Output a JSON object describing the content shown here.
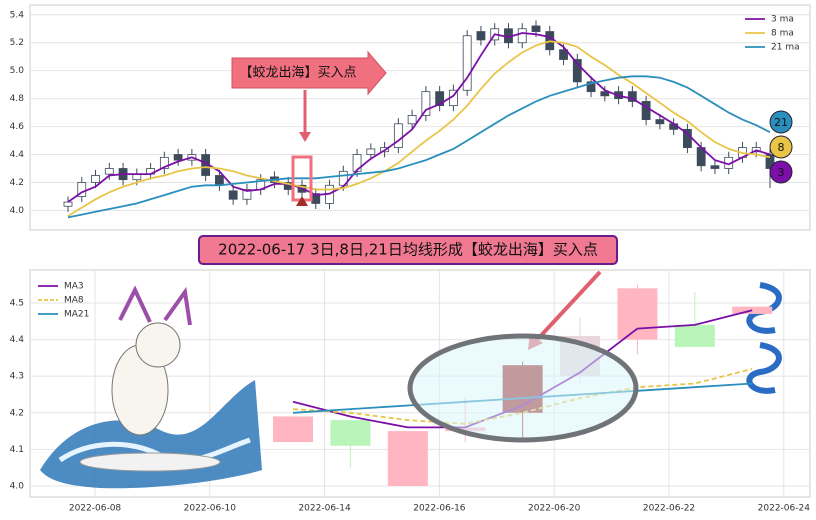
{
  "chart_data": [
    {
      "type": "candlestick",
      "open": [
        4.03,
        4.1,
        4.2,
        4.26,
        4.3,
        4.22,
        4.26,
        4.3,
        4.4,
        4.36,
        4.4,
        4.25,
        4.14,
        4.08,
        4.15,
        4.24,
        4.2,
        4.18,
        4.12,
        4.05,
        4.18,
        4.28,
        4.4,
        4.42,
        4.45,
        4.62,
        4.68,
        4.85,
        4.75,
        4.86,
        5.28,
        5.22,
        5.3,
        5.2,
        5.32,
        5.28,
        5.15,
        5.08,
        4.92,
        4.85,
        4.85,
        4.85,
        4.78,
        4.65,
        4.62,
        4.58,
        4.45,
        4.32,
        4.3,
        4.38,
        4.42,
        4.4
      ],
      "high": [
        4.1,
        4.24,
        4.29,
        4.34,
        4.34,
        4.3,
        4.34,
        4.42,
        4.44,
        4.44,
        4.44,
        4.29,
        4.18,
        4.19,
        4.26,
        4.28,
        4.24,
        4.22,
        4.16,
        4.22,
        4.32,
        4.44,
        4.48,
        4.49,
        4.66,
        4.72,
        4.89,
        4.89,
        4.9,
        5.29,
        5.32,
        5.34,
        5.34,
        5.34,
        5.36,
        5.32,
        5.19,
        5.12,
        4.96,
        4.89,
        4.89,
        4.89,
        4.82,
        4.69,
        4.66,
        4.62,
        4.49,
        4.36,
        4.42,
        4.49,
        4.49,
        4.44
      ],
      "low": [
        3.99,
        4.06,
        4.16,
        4.22,
        4.18,
        4.18,
        4.22,
        4.26,
        4.32,
        4.32,
        4.21,
        4.14,
        4.04,
        4.04,
        4.11,
        4.16,
        4.11,
        4.09,
        4.01,
        4.01,
        4.14,
        4.24,
        4.36,
        4.38,
        4.41,
        4.58,
        4.64,
        4.71,
        4.71,
        4.82,
        5.18,
        5.18,
        5.16,
        5.16,
        5.24,
        5.11,
        5.04,
        4.88,
        4.81,
        4.78,
        4.76,
        4.74,
        4.61,
        4.58,
        4.54,
        4.41,
        4.28,
        4.26,
        4.26,
        4.34,
        4.38,
        4.16
      ],
      "close": [
        4.06,
        4.2,
        4.25,
        4.3,
        4.22,
        4.26,
        4.3,
        4.38,
        4.36,
        4.4,
        4.25,
        4.18,
        4.08,
        4.15,
        4.22,
        4.2,
        4.15,
        4.13,
        4.05,
        4.18,
        4.28,
        4.4,
        4.44,
        4.45,
        4.62,
        4.68,
        4.85,
        4.75,
        4.86,
        5.25,
        5.22,
        5.3,
        5.2,
        5.3,
        5.28,
        5.15,
        5.08,
        4.92,
        4.85,
        4.82,
        4.8,
        4.78,
        4.65,
        4.62,
        4.58,
        4.45,
        4.32,
        4.3,
        4.38,
        4.45,
        4.45,
        4.3
      ],
      "series": [
        {
          "name": "3 ma",
          "badge": "3",
          "color": "#7b0fa8",
          "values": [
            4.06,
            4.13,
            4.17,
            4.25,
            4.26,
            4.26,
            4.26,
            4.31,
            4.35,
            4.38,
            4.34,
            4.28,
            4.17,
            4.14,
            4.15,
            4.19,
            4.19,
            4.16,
            4.11,
            4.12,
            4.17,
            4.29,
            4.37,
            4.43,
            4.5,
            4.58,
            4.72,
            4.76,
            4.82,
            4.95,
            5.11,
            5.26,
            5.24,
            5.27,
            5.26,
            5.24,
            5.17,
            5.05,
            4.95,
            4.86,
            4.82,
            4.8,
            4.74,
            4.68,
            4.62,
            4.55,
            4.45,
            4.36,
            4.33,
            4.38,
            4.43,
            4.4
          ]
        },
        {
          "name": "8 ma",
          "badge": "8",
          "color": "#e8c547",
          "values": [
            3.96,
            4.02,
            4.08,
            4.13,
            4.17,
            4.2,
            4.23,
            4.25,
            4.28,
            4.3,
            4.31,
            4.3,
            4.28,
            4.25,
            4.23,
            4.21,
            4.19,
            4.17,
            4.15,
            4.15,
            4.16,
            4.19,
            4.23,
            4.28,
            4.34,
            4.42,
            4.5,
            4.57,
            4.65,
            4.75,
            4.87,
            4.98,
            5.06,
            5.13,
            5.18,
            5.21,
            5.2,
            5.17,
            5.1,
            5.04,
            4.97,
            4.91,
            4.84,
            4.77,
            4.7,
            4.64,
            4.56,
            4.49,
            4.44,
            4.41,
            4.4,
            4.38
          ]
        },
        {
          "name": "21 ma",
          "badge": "21",
          "color": "#2a8fbd",
          "values": [
            3.95,
            3.97,
            3.99,
            4.01,
            4.03,
            4.05,
            4.08,
            4.11,
            4.14,
            4.17,
            4.18,
            4.18,
            4.19,
            4.2,
            4.21,
            4.22,
            4.23,
            4.23,
            4.23,
            4.24,
            4.25,
            4.26,
            4.27,
            4.28,
            4.3,
            4.33,
            4.36,
            4.4,
            4.44,
            4.5,
            4.56,
            4.62,
            4.68,
            4.73,
            4.78,
            4.82,
            4.85,
            4.88,
            4.91,
            4.93,
            4.95,
            4.96,
            4.96,
            4.95,
            4.92,
            4.88,
            4.82,
            4.76,
            4.7,
            4.65,
            4.61,
            4.56
          ]
        }
      ],
      "ylim": [
        3.86,
        5.47
      ],
      "yticks": [
        {
          "value": 4,
          "label": "4.0"
        },
        {
          "value": 4.2,
          "label": "4.2"
        },
        {
          "value": 4.4,
          "label": "4.4"
        },
        {
          "value": 4.6,
          "label": "4.6"
        },
        {
          "value": 4.8,
          "label": "4.8"
        },
        {
          "value": 5,
          "label": "5.0"
        },
        {
          "value": 5.2,
          "label": "5.2"
        },
        {
          "value": 5.4,
          "label": "5.4"
        }
      ],
      "grid": true,
      "legend": "upper right",
      "up_color": "#ffffff",
      "down_color": "#3d4a5c",
      "annotation": "【蛟龙出海】买入点"
    },
    {
      "type": "candlestick",
      "x": [
        "2022-06-13",
        "2022-06-14",
        "2022-06-15",
        "2022-06-16",
        "2022-06-17",
        "2022-06-20",
        "2022-06-21",
        "2022-06-22",
        "2022-06-23"
      ],
      "open": [
        4.19,
        4.11,
        4.15,
        4.16,
        4.2,
        4.3,
        4.54,
        4.38,
        4.49
      ],
      "high": [
        4.19,
        4.18,
        4.15,
        4.24,
        4.34,
        4.46,
        4.55,
        4.53,
        4.49
      ],
      "low": [
        4.12,
        4.05,
        4.0,
        4.12,
        4.12,
        4.28,
        4.36,
        4.38,
        4.47
      ],
      "close": [
        4.12,
        4.18,
        4.0,
        4.15,
        4.33,
        4.41,
        4.4,
        4.44,
        4.47
      ],
      "colors": [
        "#ffb6c1",
        "#b9f5b9",
        "#ffb6c1",
        "#ffb6c1",
        "#a52a2a",
        "#e8d5dc",
        "#ffb6c1",
        "#b9f5b9",
        "#ffb6c1"
      ],
      "series": [
        {
          "name": "MA3",
          "color": "#7b0fa8",
          "values": [
            4.23,
            4.19,
            4.16,
            4.16,
            4.22,
            4.31,
            4.43,
            4.44,
            4.48
          ]
        },
        {
          "name": "MA8",
          "color": "#e8c547",
          "dashed": true,
          "values": [
            4.21,
            4.2,
            4.18,
            4.17,
            4.2,
            4.24,
            4.27,
            4.28,
            4.32
          ]
        },
        {
          "name": "MA21",
          "color": "#2a8fbd",
          "values": [
            4.2,
            4.21,
            4.22,
            4.23,
            4.24,
            4.25,
            4.26,
            4.27,
            4.28
          ]
        }
      ],
      "xticks": [
        "2022-06-08",
        "2022-06-10",
        "2022-06-14",
        "2022-06-16",
        "2022-06-20",
        "2022-06-22",
        "2022-06-24"
      ],
      "ylim": [
        3.97,
        4.59
      ],
      "yticks": [
        {
          "value": 4,
          "label": "4.0"
        },
        {
          "value": 4.1,
          "label": "4.1"
        },
        {
          "value": 4.2,
          "label": "4.2"
        },
        {
          "value": 4.3,
          "label": "4.3"
        },
        {
          "value": 4.4,
          "label": "4.4"
        },
        {
          "value": 4.5,
          "label": "4.5"
        }
      ],
      "grid": true,
      "legend": "upper left",
      "annotation": "2022-06-17 3日,8日,21日均线形成【蛟龙出海】买入点"
    }
  ]
}
